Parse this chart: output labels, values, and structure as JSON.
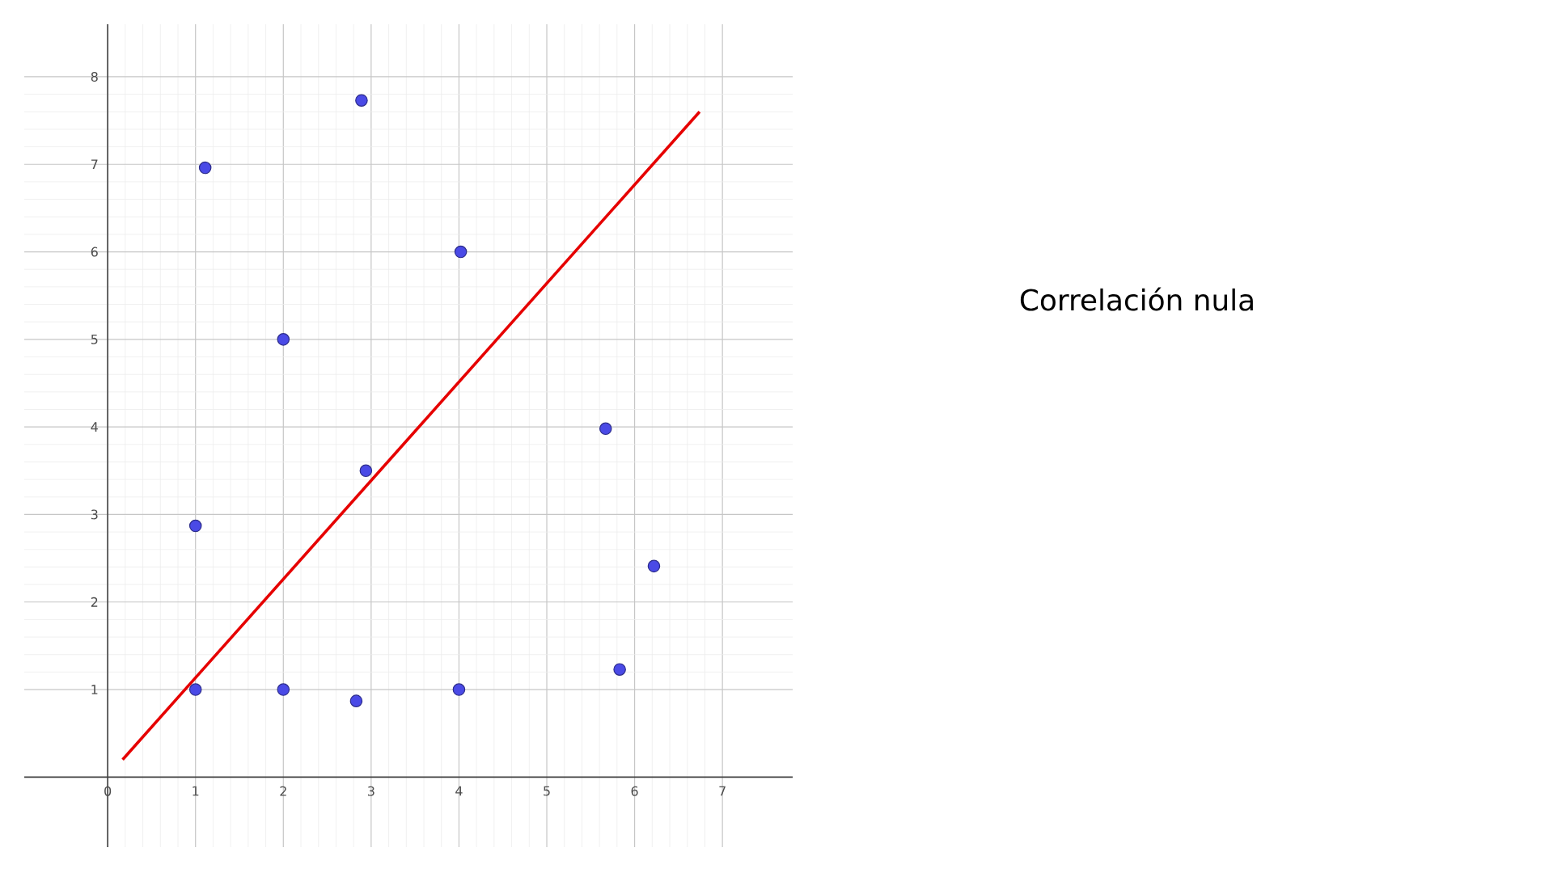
{
  "chart_data": {
    "type": "scatter",
    "title": "Correlación nula",
    "xlim": [
      -0.95,
      7.8
    ],
    "ylim": [
      -0.8,
      8.6
    ],
    "xticks": [
      0,
      1,
      2,
      3,
      4,
      5,
      6,
      7
    ],
    "yticks": [
      1,
      2,
      3,
      4,
      5,
      6,
      7,
      8
    ],
    "grid": true,
    "marker": "circle",
    "series": [
      {
        "color": "#4a4ae6",
        "x": [
          1.11,
          2.89,
          4.02,
          2.0,
          5.67,
          2.94,
          1.0,
          6.22,
          1.0,
          2.0,
          2.83,
          4.0,
          5.83
        ],
        "values": [
          6.96,
          7.73,
          6.0,
          5.0,
          3.98,
          3.5,
          2.87,
          2.41,
          1.0,
          1.0,
          0.87,
          1.0,
          1.23
        ]
      },
      {
        "type": "line",
        "color": "#e60000",
        "marker": "none",
        "line_style": "solid",
        "x": [
          0.17,
          6.74
        ],
        "values": [
          0.2,
          7.6
        ]
      }
    ]
  }
}
